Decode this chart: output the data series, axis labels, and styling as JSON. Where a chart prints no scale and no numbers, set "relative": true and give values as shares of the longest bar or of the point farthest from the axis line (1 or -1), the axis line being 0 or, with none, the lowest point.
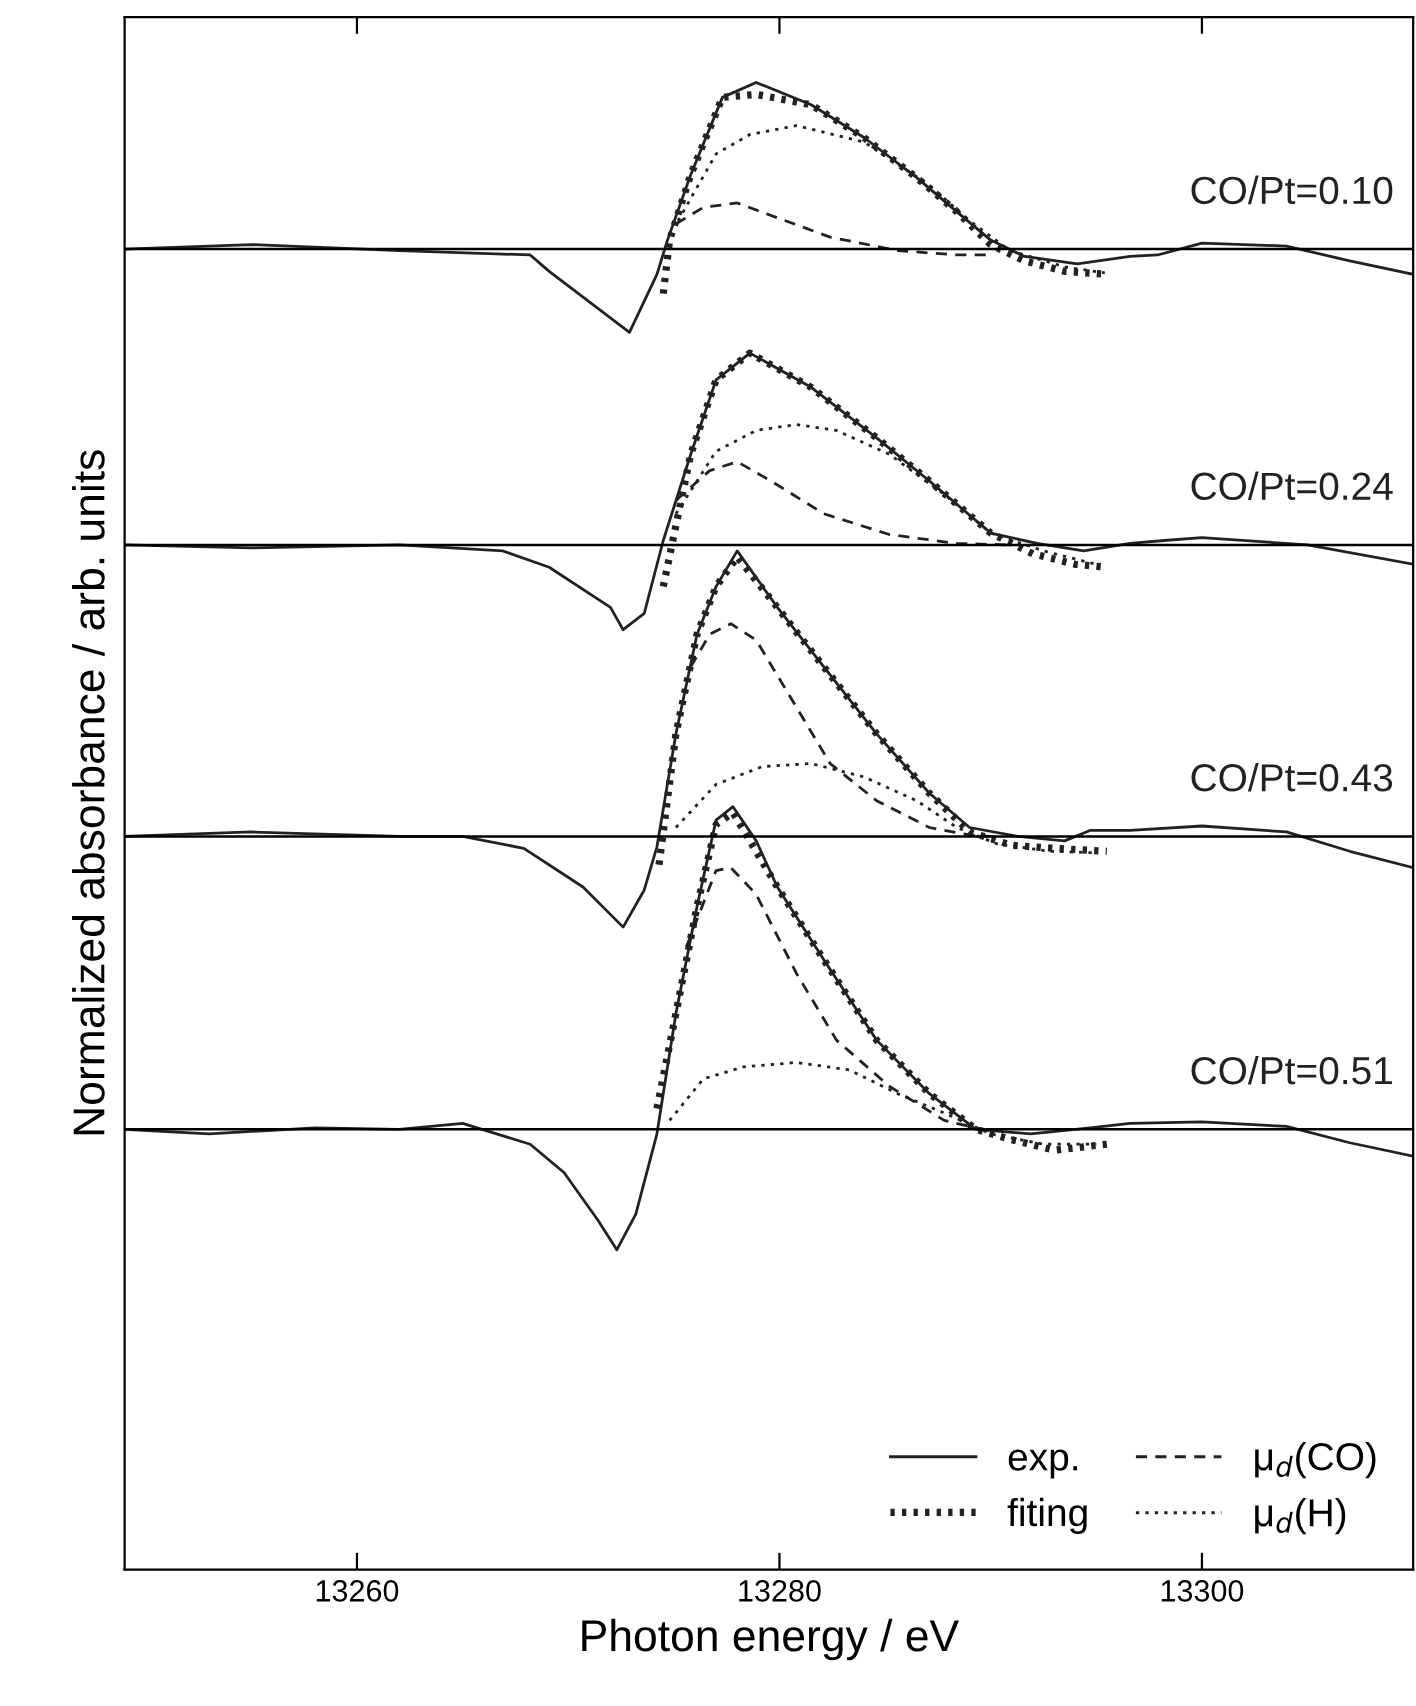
{
  "chart_data": {
    "type": "line",
    "relative": true,
    "xlabel": "Photon energy / eV",
    "ylabel": "Normalized absorbance / arb. units",
    "xlim": [
      13249,
      13310
    ],
    "xticks": [
      13260,
      13280,
      13300
    ],
    "grid": false,
    "legend": "bottom right",
    "marker": "none",
    "annotations": [
      "CO/Pt=0.10",
      "CO/Pt=0.24",
      "CO/Pt=0.43",
      "CO/Pt=0.51"
    ],
    "ref_lines": [
      {
        "axis": "y",
        "value": 0.888,
        "color": "#000000"
      },
      {
        "axis": "y",
        "value": 0.689,
        "color": "#000000"
      },
      {
        "axis": "y",
        "value": 0.493,
        "color": "#000000"
      },
      {
        "axis": "y",
        "value": 0.296,
        "color": "#000000"
      }
    ],
    "series": [
      {
        "name": "exp.",
        "color": "#222222",
        "line_style": "solid",
        "x": [
          13249,
          13255,
          13262,
          13268.2,
          13269.1,
          13272.9,
          13274.2,
          13274.7,
          13275.8,
          13277.3,
          13278.9,
          13281.5,
          13284.0,
          13286.5,
          13288.4,
          13290.0,
          13291.6,
          13294.1,
          13296.6,
          13297.9,
          13300,
          13304,
          13307,
          13310
        ],
        "values": [
          0.888,
          0.891,
          0.887,
          0.884,
          0.873,
          0.832,
          0.871,
          0.894,
          0.938,
          0.99,
          1,
          0.985,
          0.963,
          0.936,
          0.913,
          0.894,
          0.883,
          0.878,
          0.883,
          0.884,
          0.892,
          0.89,
          0.88,
          0.871
        ]
      },
      {
        "name": "fiting",
        "color": "#222222",
        "line_style": "dotted",
        "x": [
          13274.5,
          13274.8,
          13275.8,
          13277.3,
          13278.9,
          13281.5,
          13284.0,
          13286.5,
          13288.4,
          13290.0,
          13291.6,
          13293.5,
          13295.5
        ],
        "values": [
          0.858,
          0.894,
          0.938,
          0.99,
          0.992,
          0.985,
          0.963,
          0.936,
          0.913,
          0.891,
          0.88,
          0.873,
          0.871
        ]
      },
      {
        "name": "μ$_{d}$(CO)",
        "color": "#222222",
        "line_style": "dashed",
        "x": [
          13275.1,
          13276.4,
          13278.0,
          13279.9,
          13282.4,
          13285.6,
          13288.4,
          13290.0
        ],
        "values": [
          0.905,
          0.916,
          0.919,
          0.909,
          0.896,
          0.887,
          0.884,
          0.884
        ]
      },
      {
        "name": "μ$_{d}$(H)",
        "color": "#222222",
        "line_style": "dotted",
        "x": [
          13275.2,
          13277.0,
          13278.6,
          13280.8,
          13284.0,
          13287.1,
          13289.0,
          13290.9,
          13293.5,
          13295.4
        ],
        "values": [
          0.907,
          0.952,
          0.965,
          0.971,
          0.96,
          0.931,
          0.907,
          0.887,
          0.876,
          0.872
        ]
      },
      {
        "color": "#222222",
        "line_style": "solid",
        "x": [
          13249,
          13255,
          13262,
          13266.9,
          13269.1,
          13272.0,
          13272.6,
          13273.6,
          13274.5,
          13275.8,
          13277.0,
          13278.6,
          13281.5,
          13284.6,
          13287.1,
          13290.0,
          13292.2,
          13294.4,
          13296.6,
          13298.2,
          13300,
          13305,
          13310
        ],
        "values": [
          0.689,
          0.687,
          0.689,
          0.685,
          0.674,
          0.647,
          0.632,
          0.643,
          0.692,
          0.75,
          0.8,
          0.818,
          0.795,
          0.761,
          0.732,
          0.697,
          0.69,
          0.685,
          0.69,
          0.692,
          0.694,
          0.689,
          0.676
        ]
      },
      {
        "color": "#222222",
        "line_style": "dotted",
        "x": [
          13274.5,
          13275.8,
          13277.0,
          13278.6,
          13281.5,
          13284.6,
          13287.1,
          13290.0,
          13292.0,
          13294.0,
          13295.5
        ],
        "values": [
          0.661,
          0.75,
          0.8,
          0.818,
          0.795,
          0.761,
          0.732,
          0.697,
          0.683,
          0.676,
          0.674
        ]
      },
      {
        "color": "#222222",
        "line_style": "dashed",
        "x": [
          13275.1,
          13276.7,
          13278.0,
          13279.6,
          13282.1,
          13285.2,
          13288.4,
          13291.0
        ],
        "values": [
          0.719,
          0.739,
          0.745,
          0.732,
          0.71,
          0.696,
          0.69,
          0.689
        ]
      },
      {
        "color": "#222222",
        "line_style": "dotted",
        "x": [
          13275.1,
          13277.0,
          13278.9,
          13280.8,
          13282.7,
          13285.2,
          13287.8,
          13290.0,
          13292.5,
          13295.0
        ],
        "values": [
          0.71,
          0.752,
          0.766,
          0.77,
          0.766,
          0.75,
          0.723,
          0.697,
          0.685,
          0.676
        ]
      },
      {
        "color": "#222222",
        "line_style": "solid",
        "x": [
          13249,
          13255,
          13262,
          13265,
          13267.9,
          13270.7,
          13272.6,
          13273.6,
          13274.2,
          13275.1,
          13276.1,
          13277.0,
          13278.0,
          13279.9,
          13282.1,
          13284.6,
          13287.1,
          13289.0,
          13291.3,
          13293.5,
          13294.7,
          13296.6,
          13300,
          13304,
          13307,
          13310
        ],
        "values": [
          0.493,
          0.496,
          0.493,
          0.493,
          0.485,
          0.459,
          0.432,
          0.457,
          0.486,
          0.562,
          0.629,
          0.661,
          0.685,
          0.647,
          0.607,
          0.562,
          0.522,
          0.499,
          0.493,
          0.49,
          0.497,
          0.497,
          0.5,
          0.496,
          0.483,
          0.472
        ]
      },
      {
        "color": "#222222",
        "line_style": "dotted",
        "x": [
          13274.3,
          13275.1,
          13276.1,
          13277.0,
          13278.0,
          13279.9,
          13282.1,
          13284.6,
          13287.1,
          13289.0,
          13291.0,
          13293.0,
          13295.5
        ],
        "values": [
          0.474,
          0.562,
          0.629,
          0.661,
          0.681,
          0.647,
          0.607,
          0.562,
          0.522,
          0.496,
          0.487,
          0.485,
          0.483
        ]
      },
      {
        "color": "#222222",
        "line_style": "dashed",
        "x": [
          13275.8,
          13276.7,
          13277.7,
          13278.9,
          13280.8,
          13282.4,
          13284.6,
          13287.1,
          13289.0,
          13290.0
        ],
        "values": [
          0.607,
          0.629,
          0.636,
          0.625,
          0.58,
          0.542,
          0.517,
          0.499,
          0.494,
          0.493
        ]
      },
      {
        "color": "#222222",
        "line_style": "dotted",
        "x": [
          13275.1,
          13277.0,
          13279.2,
          13281.5,
          13284.0,
          13286.5,
          13288.4,
          13290.3,
          13292.8,
          13295.0
        ],
        "values": [
          0.499,
          0.528,
          0.54,
          0.542,
          0.533,
          0.517,
          0.499,
          0.488,
          0.483,
          0.482
        ]
      },
      {
        "color": "#222222",
        "line_style": "solid",
        "x": [
          13249,
          13253,
          13258,
          13262,
          13265,
          13268.2,
          13269.8,
          13271.4,
          13272.3,
          13273.2,
          13274.2,
          13275.1,
          13276.1,
          13277.0,
          13277.8,
          13278.9,
          13279.9,
          13282.1,
          13284.6,
          13287.1,
          13289.3,
          13291.9,
          13294.7,
          13296.6,
          13300,
          13304,
          13307,
          13310
        ],
        "values": [
          0.296,
          0.293,
          0.297,
          0.296,
          0.3,
          0.286,
          0.267,
          0.235,
          0.215,
          0.239,
          0.293,
          0.374,
          0.446,
          0.504,
          0.513,
          0.49,
          0.459,
          0.41,
          0.356,
          0.32,
          0.296,
          0.293,
          0.297,
          0.3,
          0.301,
          0.298,
          0.287,
          0.278
        ]
      },
      {
        "color": "#222222",
        "line_style": "dotted",
        "x": [
          13274.2,
          13275.1,
          13276.1,
          13277.0,
          13277.8,
          13279.9,
          13282.1,
          13284.6,
          13287.1,
          13289.3,
          13291.0,
          13293.0,
          13295.5
        ],
        "values": [
          0.31,
          0.374,
          0.446,
          0.501,
          0.509,
          0.459,
          0.41,
          0.356,
          0.32,
          0.296,
          0.289,
          0.282,
          0.286
        ]
      },
      {
        "color": "#222222",
        "line_style": "dashed",
        "x": [
          13275.6,
          13277.0,
          13277.7,
          13278.9,
          13280.8,
          13282.7,
          13285.2,
          13287.8,
          13289.6
        ],
        "values": [
          0.419,
          0.47,
          0.472,
          0.454,
          0.401,
          0.356,
          0.325,
          0.302,
          0.296
        ]
      },
      {
        "color": "#222222",
        "line_style": "dotted",
        "x": [
          13274.8,
          13276.4,
          13278.3,
          13280.8,
          13283.3,
          13285.6,
          13287.8,
          13290.0,
          13292.5,
          13295.0
        ],
        "values": [
          0.302,
          0.33,
          0.338,
          0.341,
          0.336,
          0.32,
          0.307,
          0.293,
          0.286,
          0.286
        ]
      }
    ]
  }
}
